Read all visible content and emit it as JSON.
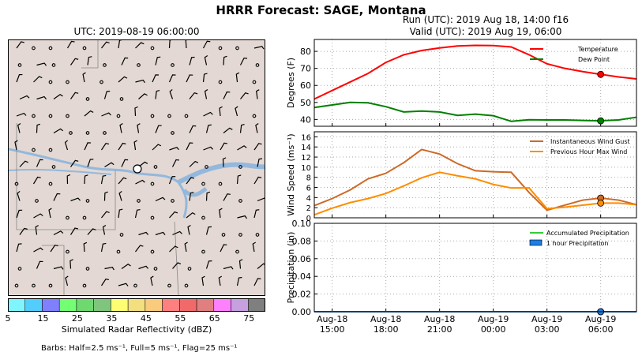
{
  "title": "HRRR Forecast: SAGE, Montana",
  "map": {
    "subtitle": "UTC: 2019-08-19 06:00:00",
    "colorbar": {
      "label": "Simulated Radar Reflectivity (dBZ)",
      "ticks": [
        "5",
        "15",
        "25",
        "35",
        "45",
        "55",
        "65",
        "75"
      ],
      "colors": [
        "#7ff6fe",
        "#53cdfb",
        "#8080fe",
        "#73fe73",
        "#6ed96f",
        "#7fc57e",
        "#fefe73",
        "#f2e07f",
        "#fbcb7d",
        "#fd7f7f",
        "#f06a6a",
        "#df7f7f",
        "#fd80fd",
        "#c7a0e0",
        "#7f7f7f"
      ]
    },
    "barbs_note": "Barbs: Half=2.5 ms⁻¹, Full=5 ms⁻¹, Flag=25 ms⁻¹"
  },
  "run": {
    "line1": "Run (UTC): 2019 Aug 18, 14:00 f16",
    "line2": "Valid (UTC): 2019 Aug 19, 06:00"
  },
  "chart_data": [
    {
      "type": "line",
      "ylabel": "Degrees (F)",
      "ylim": [
        36,
        87
      ],
      "yticks": [
        40,
        50,
        60,
        70,
        80
      ],
      "x": [
        0,
        1,
        2,
        3,
        4,
        5,
        6,
        7,
        8,
        9,
        10,
        11,
        12,
        13,
        14,
        15,
        16,
        17,
        18
      ],
      "series": [
        {
          "name": "Temperature",
          "color": "#ff0000",
          "values": [
            52,
            57,
            62,
            67,
            73.5,
            78,
            80.5,
            82,
            83.2,
            83.5,
            83.4,
            82.6,
            78,
            72.7,
            70,
            68.1,
            66.5,
            65,
            63.8
          ]
        },
        {
          "name": "Dew Point",
          "color": "#008000",
          "values": [
            47,
            48.5,
            50,
            49.8,
            47.5,
            44.4,
            44.9,
            44.4,
            42.4,
            43.1,
            42.2,
            38.9,
            39.8,
            39.7,
            39.7,
            39.4,
            39.2,
            39.7,
            41.3
          ]
        }
      ],
      "marker_index": 16,
      "legend": "top-right",
      "grid": true
    },
    {
      "type": "line",
      "ylabel": "Wind Speed (ms⁻¹)",
      "ylim": [
        0,
        17
      ],
      "yticks": [
        0,
        2,
        4,
        6,
        8,
        10,
        12,
        14,
        16
      ],
      "x": [
        0,
        1,
        2,
        3,
        4,
        5,
        6,
        7,
        8,
        9,
        10,
        11,
        12,
        13,
        14,
        15,
        16,
        17,
        18
      ],
      "series": [
        {
          "name": "Instantaneous Wind Gust",
          "color": "#cc6a28",
          "values": [
            2.4,
            3.8,
            5.5,
            7.7,
            8.8,
            10.9,
            13.5,
            12.6,
            10.7,
            9.3,
            9.1,
            9.0,
            5.0,
            1.5,
            2.5,
            3.5,
            3.9,
            3.5,
            2.6
          ]
        },
        {
          "name": "Previous Hour Max Wind",
          "color": "#ff8c00",
          "values": [
            0.6,
            1.9,
            3.0,
            3.8,
            4.8,
            6.3,
            7.9,
            9.0,
            8.3,
            7.7,
            6.6,
            5.9,
            5.9,
            1.8,
            2.1,
            2.5,
            2.9,
            2.9,
            2.6
          ]
        }
      ],
      "marker_index": 16,
      "legend": "top-right",
      "grid": true
    },
    {
      "type": "line",
      "ylabel": "Precipitation (in)",
      "ylim": [
        0,
        0.1
      ],
      "yticks": [
        "0.00",
        "0.02",
        "0.04",
        "0.06",
        "0.08",
        "0.10"
      ],
      "x": [
        0,
        1,
        2,
        3,
        4,
        5,
        6,
        7,
        8,
        9,
        10,
        11,
        12,
        13,
        14,
        15,
        16,
        17,
        18
      ],
      "series": [
        {
          "name": "Accumulated Precipitation",
          "color": "#33cc33",
          "values": [
            0,
            0,
            0,
            0,
            0,
            0,
            0,
            0,
            0,
            0,
            0,
            0,
            0,
            0,
            0,
            0,
            0,
            0,
            0
          ]
        },
        {
          "name": "1 hour Precipitation",
          "color": "#1f7de6",
          "values": [
            0,
            0,
            0,
            0,
            0,
            0,
            0,
            0,
            0,
            0,
            0,
            0,
            0,
            0,
            0,
            0,
            0,
            0,
            0
          ]
        }
      ],
      "marker_index": 16,
      "legend": "top-right",
      "grid": true
    }
  ],
  "x_ticks": [
    {
      "i": 1,
      "line1": "Aug-18",
      "line2": "15:00"
    },
    {
      "i": 4,
      "line1": "Aug-18",
      "line2": "18:00"
    },
    {
      "i": 7,
      "line1": "Aug-18",
      "line2": "21:00"
    },
    {
      "i": 10,
      "line1": "Aug-19",
      "line2": "00:00"
    },
    {
      "i": 13,
      "line1": "Aug-19",
      "line2": "03:00"
    },
    {
      "i": 16,
      "line1": "Aug-19",
      "line2": "06:00"
    }
  ]
}
